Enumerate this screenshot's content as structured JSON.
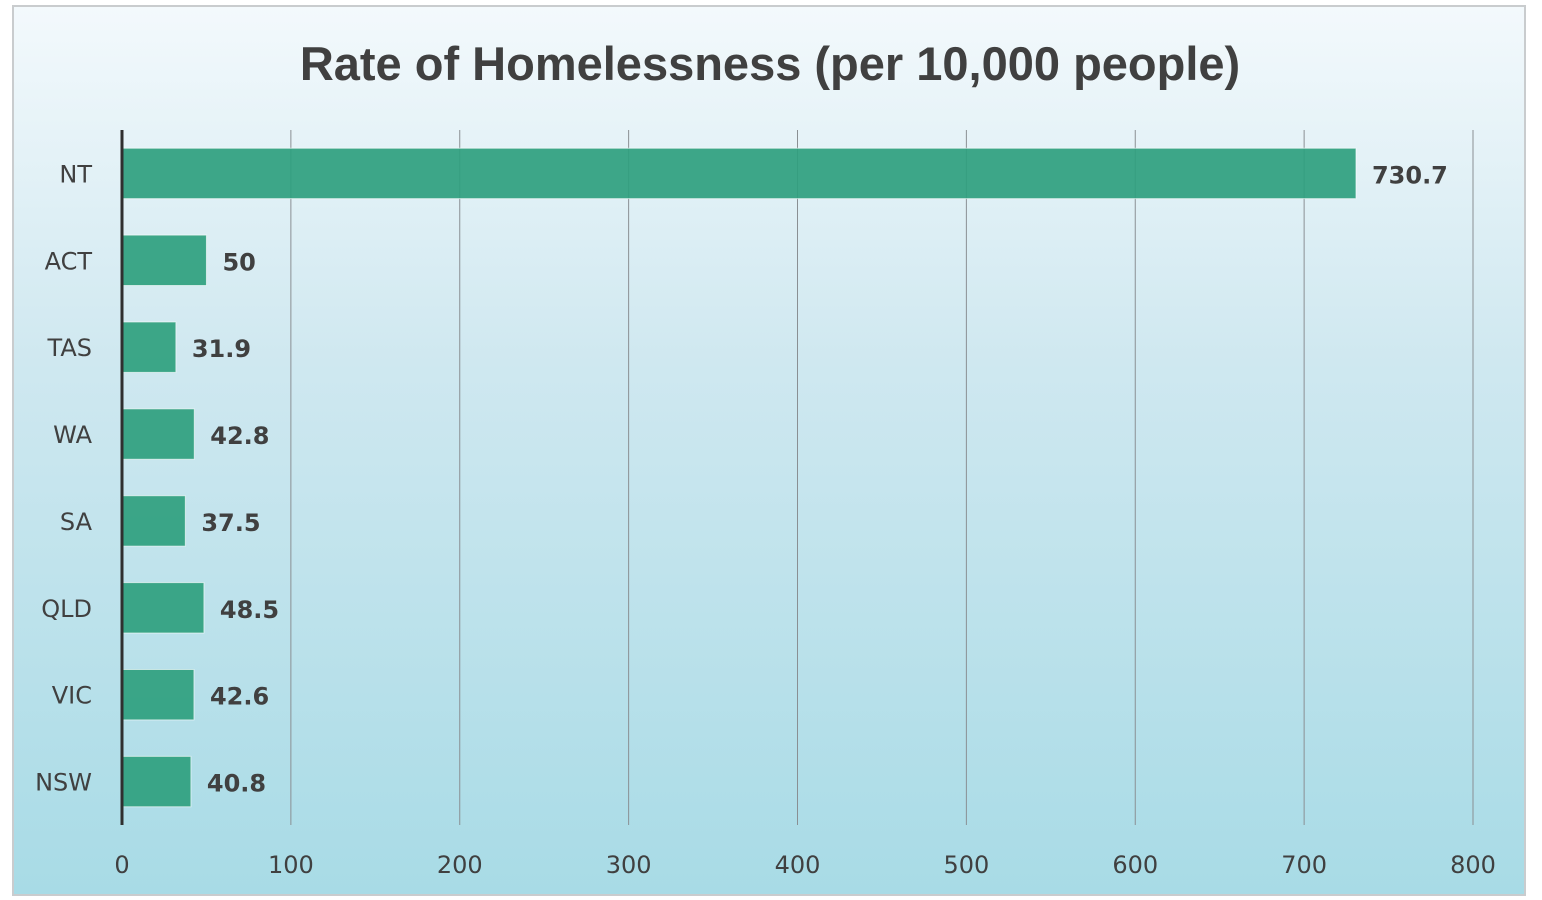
{
  "chart_data": {
    "type": "bar",
    "orientation": "horizontal",
    "title": "Rate of Homelessness (per 10,000 people)",
    "categories": [
      "NT",
      "ACT",
      "TAS",
      "WA",
      "SA",
      "QLD",
      "VIC",
      "NSW"
    ],
    "values": [
      730.7,
      50,
      31.9,
      42.8,
      37.5,
      48.5,
      42.6,
      40.8
    ],
    "data_labels": [
      "730.7",
      "50",
      "31.9",
      "42.8",
      "37.5",
      "48.5",
      "42.6",
      "40.8"
    ],
    "xlim": [
      0,
      800
    ],
    "x_ticks": [
      0,
      100,
      200,
      300,
      400,
      500,
      600,
      700,
      800
    ],
    "grid": true,
    "legend": "none",
    "bar_color": "#2fa07e"
  }
}
